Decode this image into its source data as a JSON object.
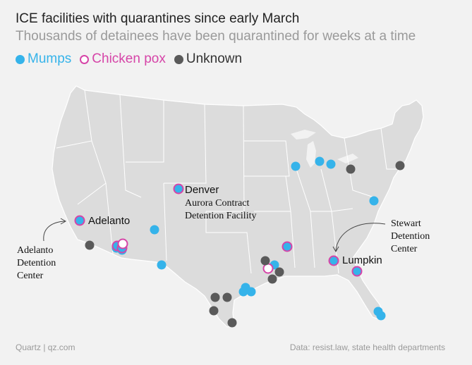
{
  "title": "ICE facilities with quarantines since early March",
  "subtitle": "Thousands of detainees have been quarantined for weeks at a time",
  "legend": [
    {
      "label": "Mumps",
      "color": "#35b3ea",
      "type": "mumps"
    },
    {
      "label": "Chicken pox",
      "color": "#d645a8",
      "type": "chickenpox"
    },
    {
      "label": "Unknown",
      "color": "#5a5a5a",
      "type": "unknown"
    }
  ],
  "colors": {
    "mumps": "#35b3ea",
    "chickenpox": "#d645a8",
    "unknown": "#5a5a5a",
    "land": "#dcdcdc",
    "border": "#ffffff",
    "background": "#f2f2f2"
  },
  "labels": {
    "adelanto": "Adelanto",
    "denver": "Denver",
    "aurora_line1": "Aurora Contract",
    "aurora_line2": "Detention Facility",
    "lumpkin": "Lumpkin",
    "adelanto_center_line1": "Adelanto",
    "adelanto_center_line2": "Detention",
    "adelanto_center_line3": "Center",
    "stewart_line1": "Stewart",
    "stewart_line2": "Detention",
    "stewart_line3": "Center"
  },
  "footer": {
    "source_left": "Quartz | qz.com",
    "source_right": "Data: resist.law, state health departments"
  }
}
